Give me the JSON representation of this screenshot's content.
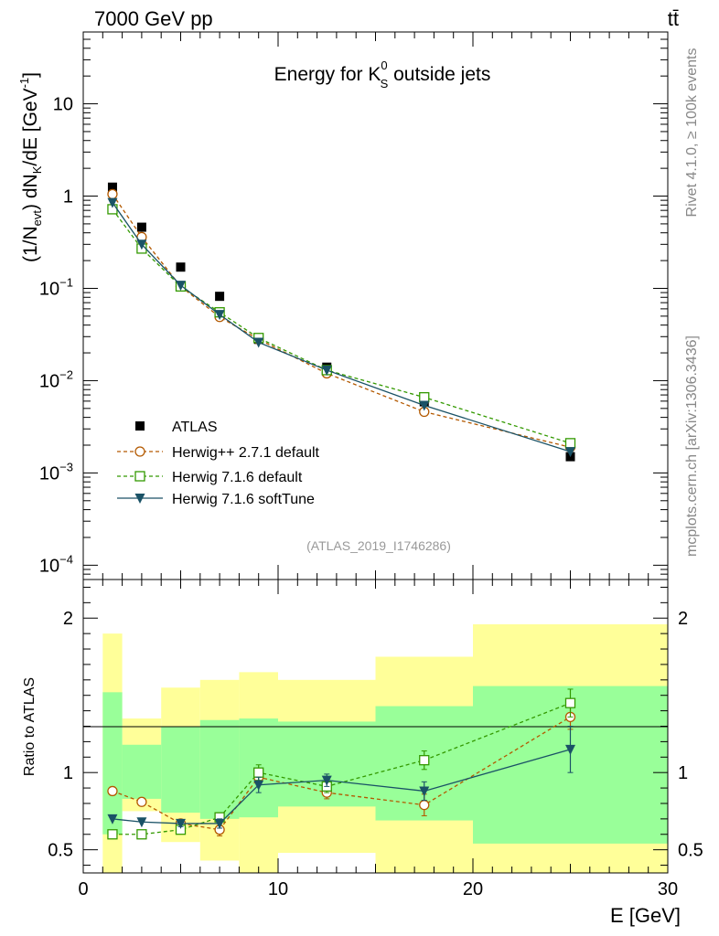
{
  "header": {
    "left": "7000 GeV pp",
    "right": "tt̄"
  },
  "side_labels": {
    "top": "Rivet 4.1.0, ≥ 100k events",
    "bottom": "mcplots.cern.ch [arXiv:1306.3436]"
  },
  "chart_data": [
    {
      "type": "line",
      "panel": "main",
      "title": "Energy for K⁰S outside jets",
      "title_main": "Energy for K",
      "title_sup": "0",
      "title_sub": "S",
      "title_rest": " outside jets",
      "ylabel": "(1/Nevt) dNK/dE [GeV⁻¹]",
      "xlabel": "E [GeV]",
      "xlim": [
        0,
        30
      ],
      "ylim": [
        7e-05,
        60
      ],
      "yscale": "log",
      "x_ticks": [
        "0",
        "10",
        "20",
        "30"
      ],
      "y_ticks": [
        {
          "value": 10,
          "label": "10",
          "exp": ""
        },
        {
          "value": 1,
          "label": "1",
          "exp": ""
        },
        {
          "value": 0.1,
          "label": "10",
          "exp": "−1"
        },
        {
          "value": 0.01,
          "label": "10",
          "exp": "−2"
        },
        {
          "value": 0.001,
          "label": "10",
          "exp": "−3"
        },
        {
          "value": 0.0001,
          "label": "10",
          "exp": "−4"
        }
      ],
      "analysis_id": "(ATLAS_2019_I1746286)",
      "legend_position": "bottom-left",
      "series": [
        {
          "name": "ATLAS",
          "color": "#000000",
          "marker": "filled-square",
          "x": [
            1.5,
            3,
            5,
            7,
            9,
            12.5,
            17.5,
            25
          ],
          "y": [
            1.25,
            0.46,
            0.17,
            0.082,
            0.028,
            0.014,
            0.0059,
            0.0015
          ]
        },
        {
          "name": "Herwig++ 2.7.1 default",
          "color": "#b35900",
          "marker": "open-circle",
          "dash": "4,3",
          "x": [
            1.5,
            3,
            5,
            7,
            9,
            12.5,
            17.5,
            25
          ],
          "y": [
            1.05,
            0.36,
            0.105,
            0.049,
            0.028,
            0.012,
            0.0046,
            0.0019
          ]
        },
        {
          "name": "Herwig 7.1.6 default",
          "color": "#339900",
          "marker": "open-square",
          "dash": "4,3",
          "x": [
            1.5,
            3,
            5,
            7,
            9,
            12.5,
            17.5,
            25
          ],
          "y": [
            0.72,
            0.27,
            0.105,
            0.055,
            0.029,
            0.013,
            0.0066,
            0.0021
          ]
        },
        {
          "name": "Herwig 7.1.6 softTune",
          "color": "#1a5266",
          "marker": "filled-triangle-down",
          "x": [
            1.5,
            3,
            5,
            7,
            9,
            12.5,
            17.5,
            25
          ],
          "y": [
            0.85,
            0.3,
            0.108,
            0.052,
            0.026,
            0.013,
            0.0054,
            0.0017
          ]
        }
      ]
    },
    {
      "type": "line",
      "panel": "ratio",
      "ylabel": "Ratio to ATLAS",
      "xlim": [
        0,
        30
      ],
      "ylim": [
        0.35,
        2.25
      ],
      "y_ticks": [
        "0.5",
        "1",
        "2"
      ],
      "bands": {
        "edges": [
          1,
          2,
          4,
          6,
          8,
          10,
          15,
          20,
          30
        ],
        "inner": [
          [
            0.6,
            1.52
          ],
          [
            0.83,
            1.18
          ],
          [
            0.74,
            1.3
          ],
          [
            0.7,
            1.34
          ],
          [
            0.71,
            1.35
          ],
          [
            0.78,
            1.33
          ],
          [
            0.69,
            1.43
          ],
          [
            0.54,
            1.56
          ]
        ],
        "outer": [
          [
            0.35,
            1.9
          ],
          [
            0.75,
            1.35
          ],
          [
            0.55,
            1.55
          ],
          [
            0.43,
            1.6
          ],
          [
            0.35,
            1.65
          ],
          [
            0.48,
            1.6
          ],
          [
            0.35,
            1.75
          ],
          [
            0.35,
            1.96
          ]
        ],
        "inner_color": "#99ff99",
        "outer_color": "#ffff99"
      },
      "series": [
        {
          "name": "Herwig++ 2.7.1 default",
          "color": "#b35900",
          "marker": "open-circle",
          "dash": "4,3",
          "x": [
            1.5,
            3,
            5,
            7,
            9,
            12.5,
            17.5,
            25
          ],
          "y": [
            0.88,
            0.81,
            0.67,
            0.63,
            0.97,
            0.87,
            0.79,
            1.36
          ],
          "err": [
            0,
            0,
            0.02,
            0.04,
            0.05,
            0.04,
            0.07,
            0.08
          ]
        },
        {
          "name": "Herwig 7.1.6 default",
          "color": "#339900",
          "marker": "open-square",
          "dash": "4,3",
          "x": [
            1.5,
            3,
            5,
            7,
            9,
            12.5,
            17.5,
            25
          ],
          "y": [
            0.6,
            0.6,
            0.63,
            0.71,
            1.0,
            0.91,
            1.08,
            1.45
          ],
          "err": [
            0,
            0,
            0.02,
            0.03,
            0.05,
            0.04,
            0.06,
            0.09
          ]
        },
        {
          "name": "Herwig 7.1.6 softTune",
          "color": "#1a5266",
          "marker": "filled-triangle-down",
          "x": [
            1.5,
            3,
            5,
            7,
            9,
            12.5,
            17.5,
            25
          ],
          "y": [
            0.7,
            0.68,
            0.67,
            0.67,
            0.92,
            0.95,
            0.88,
            1.15
          ],
          "err": [
            0,
            0,
            0.02,
            0.03,
            0.05,
            0.04,
            0.06,
            0.15
          ]
        }
      ]
    }
  ]
}
